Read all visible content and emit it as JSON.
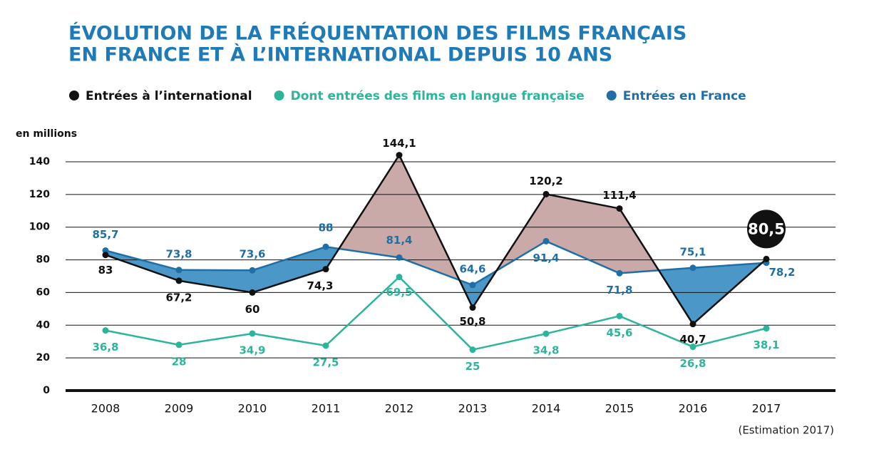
{
  "chart_data": {
    "type": "line",
    "title": [
      "ÉVOLUTION DE LA FRÉQUENTATION DES FILMS FRANÇAIS",
      "EN FRANCE ET À L’INTERNATIONAL DEPUIS 10 ANS"
    ],
    "y_label": "en millions",
    "note": "(Estimation 2017)",
    "categories": [
      "2008",
      "2009",
      "2010",
      "2011",
      "2012",
      "2013",
      "2014",
      "2015",
      "2016",
      "2017"
    ],
    "series": [
      {
        "name": "Entrées à l’international",
        "color": "#111111",
        "values": [
          83,
          67.2,
          60,
          74.3,
          144.1,
          50.8,
          120.2,
          111.4,
          40.7,
          80.5
        ],
        "value_labels": [
          "83",
          "67,2",
          "60",
          "74,3",
          "144,1",
          "50,8",
          "120,2",
          "111,4",
          "40,7",
          "80,5"
        ]
      },
      {
        "name": "Dont entrées des films en langue française",
        "color": "#2bb59a",
        "values": [
          36.8,
          28,
          34.9,
          27.5,
          69.5,
          25,
          34.8,
          45.6,
          26.8,
          38.1
        ],
        "value_labels": [
          "36,8",
          "28",
          "34,9",
          "27,5",
          "69,5",
          "25",
          "34,8",
          "45,6",
          "26,8",
          "38,1"
        ]
      },
      {
        "name": "Entrées en France",
        "color": "#1f6fa6",
        "values": [
          85.7,
          73.8,
          73.6,
          88,
          81.4,
          64.6,
          91.4,
          71.8,
          75.1,
          78.2
        ],
        "value_labels": [
          "85,7",
          "73,8",
          "73,6",
          "88",
          "81,4",
          "64,6",
          "91,4",
          "71,8",
          "75,1",
          "78,2"
        ]
      }
    ],
    "fill_colors": {
      "above": "#4a97c8",
      "below": "#c9aaa8"
    },
    "ylim": [
      0,
      140
    ],
    "yticks": [
      0,
      20,
      40,
      60,
      80,
      100,
      120,
      140
    ],
    "grid": true
  }
}
